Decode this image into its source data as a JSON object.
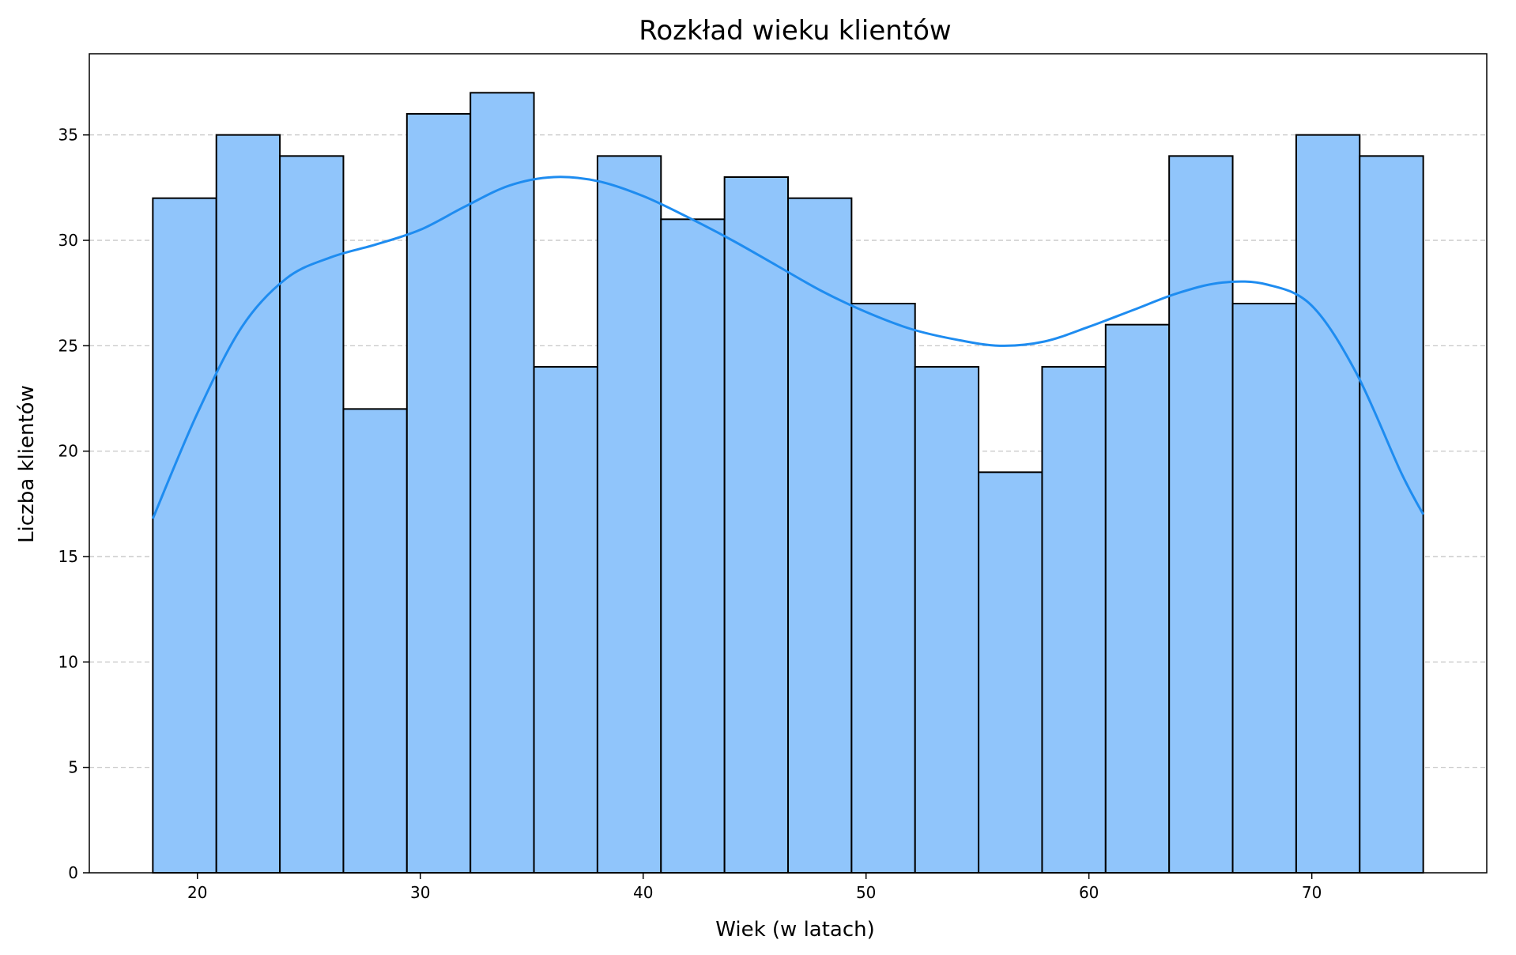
{
  "chart_data": {
    "type": "bar",
    "title": "Rozkład wieku klientów",
    "xlabel": "Wiek (w latach)",
    "ylabel": "Liczba klientów",
    "bin_edges": [
      18.0,
      20.85,
      23.7,
      26.55,
      29.4,
      32.25,
      35.1,
      37.95,
      40.8,
      43.65,
      46.5,
      49.35,
      52.2,
      55.05,
      57.9,
      60.75,
      63.6,
      66.45,
      69.3,
      72.15,
      75.0
    ],
    "values": [
      32,
      35,
      34,
      22,
      36,
      37,
      24,
      34,
      31,
      33,
      32,
      27,
      24,
      19,
      24,
      26,
      34,
      27,
      35,
      34
    ],
    "kde": {
      "x": [
        18,
        20,
        22,
        24,
        26,
        28,
        30,
        32,
        34,
        36,
        38,
        40,
        42,
        44,
        46,
        48,
        50,
        52,
        54,
        56,
        58,
        60,
        62,
        64,
        66,
        68,
        70,
        72,
        74,
        75
      ],
      "y": [
        16.8,
        21.8,
        25.9,
        28.2,
        29.2,
        29.8,
        30.5,
        31.6,
        32.6,
        33.0,
        32.8,
        32.1,
        31.1,
        30.0,
        28.8,
        27.6,
        26.6,
        25.8,
        25.3,
        25.0,
        25.2,
        25.9,
        26.7,
        27.5,
        28.0,
        27.9,
        26.9,
        23.7,
        19.0,
        17.0
      ]
    },
    "xlim": [
      15.15,
      77.85
    ],
    "ylim": [
      0,
      38.85
    ],
    "xticks": [
      20,
      30,
      40,
      50,
      60,
      70
    ],
    "yticks": [
      0,
      5,
      10,
      15,
      20,
      25,
      30,
      35
    ],
    "grid": "y dashed",
    "colors": {
      "bar_fill": "#90c5fb",
      "bar_edge": "#000000",
      "kde_line": "#1e8cf0",
      "grid": "#c0c0c0"
    }
  }
}
